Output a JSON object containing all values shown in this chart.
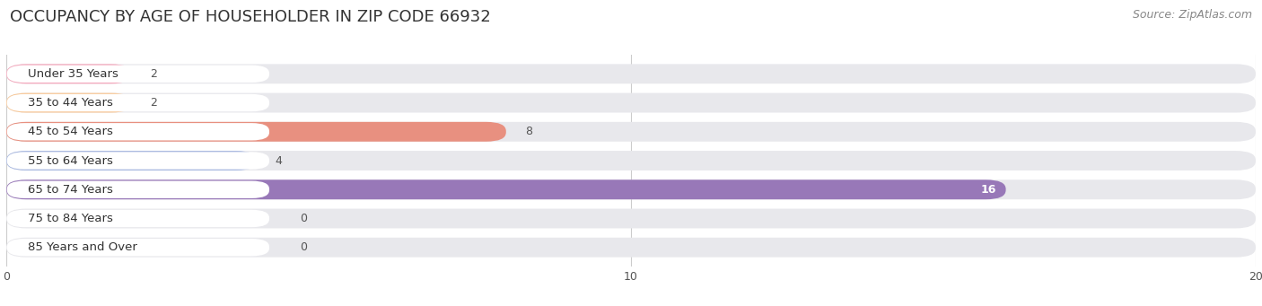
{
  "title": "OCCUPANCY BY AGE OF HOUSEHOLDER IN ZIP CODE 66932",
  "source": "Source: ZipAtlas.com",
  "categories": [
    "Under 35 Years",
    "35 to 44 Years",
    "45 to 54 Years",
    "55 to 64 Years",
    "65 to 74 Years",
    "75 to 84 Years",
    "85 Years and Over"
  ],
  "values": [
    2,
    2,
    8,
    4,
    16,
    0,
    0
  ],
  "bar_colors": [
    "#f4a8bc",
    "#f8c898",
    "#e89080",
    "#a8b8e0",
    "#9878b8",
    "#68c8b8",
    "#b0a8d8"
  ],
  "xlim": [
    0,
    20
  ],
  "xticks": [
    0,
    10,
    20
  ],
  "background_color": "#ffffff",
  "bar_bg_color": "#e8e8ec",
  "title_fontsize": 13,
  "source_fontsize": 9,
  "label_fontsize": 9.5,
  "value_fontsize": 9
}
